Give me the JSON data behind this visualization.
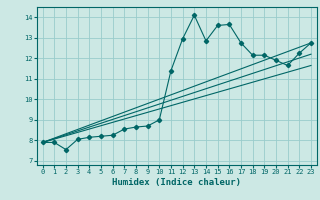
{
  "xlabel": "Humidex (Indice chaleur)",
  "background_color": "#cce8e4",
  "grid_color": "#99cccc",
  "line_color": "#006666",
  "xlim": [
    -0.5,
    23.5
  ],
  "ylim": [
    6.8,
    14.5
  ],
  "xticks": [
    0,
    1,
    2,
    3,
    4,
    5,
    6,
    7,
    8,
    9,
    10,
    11,
    12,
    13,
    14,
    15,
    16,
    17,
    18,
    19,
    20,
    21,
    22,
    23
  ],
  "yticks": [
    7,
    8,
    9,
    10,
    11,
    12,
    13,
    14
  ],
  "curve_x": [
    0,
    1,
    2,
    3,
    4,
    5,
    6,
    7,
    8,
    9,
    10,
    11,
    12,
    13,
    14,
    15,
    16,
    17,
    18,
    19,
    20,
    21,
    22,
    23
  ],
  "curve_y": [
    7.9,
    7.9,
    7.55,
    8.05,
    8.15,
    8.2,
    8.25,
    8.55,
    8.65,
    8.7,
    9.0,
    11.4,
    12.95,
    14.1,
    12.85,
    13.6,
    13.65,
    12.75,
    12.15,
    12.15,
    11.9,
    11.65,
    12.25,
    12.75
  ],
  "line1_x": [
    0,
    23
  ],
  "line1_y": [
    7.9,
    12.75
  ],
  "line2_x": [
    0,
    23
  ],
  "line2_y": [
    7.9,
    11.65
  ],
  "line3_x": [
    0,
    23
  ],
  "line3_y": [
    7.9,
    12.2
  ]
}
